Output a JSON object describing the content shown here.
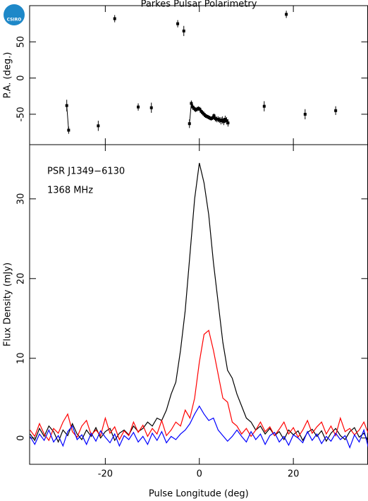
{
  "logo": "CSIRO",
  "chart_data": [
    {
      "type": "scatter",
      "title": "Parkes Pulsar Polarimetry",
      "ylabel": "P.A. (deg.)",
      "xlim": [
        -36.1,
        35.8
      ],
      "xticks": [
        -20,
        0,
        20
      ],
      "ylim": [
        -92,
        100
      ],
      "yticks": [
        -50,
        0,
        50
      ],
      "color": "#000000",
      "x": [
        -28.2,
        -27.8,
        -21.5,
        -18,
        -13,
        -10.2,
        -4.6,
        -3.3,
        -2.1,
        -1.7,
        -1.4,
        -1.1,
        -0.8,
        -0.5,
        -0.2,
        0.1,
        0.4,
        0.7,
        1.0,
        1.3,
        1.6,
        1.9,
        2.2,
        2.5,
        2.8,
        3.1,
        3.4,
        3.7,
        4.0,
        4.3,
        4.6,
        4.9,
        5.2,
        5.5,
        5.8,
        6.1,
        13.8,
        18.5,
        22.5,
        29
      ],
      "values": [
        -38,
        -72,
        -66,
        82,
        -40,
        -41,
        75,
        65,
        -63,
        -35,
        -40,
        -42,
        -44,
        -43,
        -42,
        -43,
        -46,
        -48,
        -50,
        -52,
        -53,
        -54,
        -55,
        -56,
        -55,
        -52,
        -56,
        -57,
        -57,
        -58,
        -59,
        -58,
        -60,
        -57,
        -59,
        -62,
        -39,
        88,
        -50,
        -45
      ],
      "errors": [
        8,
        5,
        7,
        5,
        5,
        7,
        5,
        7,
        6,
        4,
        4,
        3,
        3,
        3,
        3,
        3,
        3,
        3,
        3,
        3,
        3,
        3,
        3,
        3,
        3,
        3,
        4,
        4,
        4,
        4,
        5,
        5,
        5,
        5,
        5,
        5,
        7,
        5,
        7,
        6
      ]
    },
    {
      "type": "line",
      "xlabel": "Pulse Longitude (deg)",
      "ylabel": "Flux Density (mJy)",
      "annotations": [
        "PSR J1349−6130",
        "1368 MHz"
      ],
      "xlim": [
        -36.1,
        35.8
      ],
      "xticks": [
        -20,
        0,
        20
      ],
      "ylim": [
        -3.3,
        36.8
      ],
      "yticks": [
        0,
        10,
        20,
        30
      ],
      "x": [
        -36,
        -35,
        -34,
        -33,
        -32,
        -31,
        -30,
        -29,
        -28,
        -27,
        -26,
        -25,
        -24,
        -23,
        -22,
        -21,
        -20,
        -19,
        -18,
        -17,
        -16,
        -15,
        -14,
        -13,
        -12,
        -11,
        -10,
        -9,
        -8,
        -7,
        -6,
        -5,
        -4,
        -3,
        -2,
        -1,
        0,
        1,
        2,
        3,
        4,
        5,
        6,
        7,
        8,
        9,
        10,
        11,
        12,
        13,
        14,
        15,
        16,
        17,
        18,
        19,
        20,
        21,
        22,
        23,
        24,
        25,
        26,
        27,
        28,
        29,
        30,
        31,
        32,
        33,
        34,
        35,
        36
      ],
      "series": [
        {
          "color": "#000000",
          "values": [
            0.5,
            -0.3,
            1.2,
            0.2,
            1.5,
            0.8,
            -0.5,
            1.0,
            0.3,
            1.8,
            0.5,
            -0.2,
            1.0,
            0.2,
            1.3,
            0.0,
            0.8,
            1.2,
            -0.3,
            0.6,
            1.0,
            0.4,
            1.5,
            0.8,
            1.2,
            2.0,
            1.5,
            2.5,
            2.2,
            3.5,
            5.5,
            7.0,
            11,
            16,
            23,
            30,
            34.5,
            32,
            28,
            22,
            17,
            12,
            8.5,
            7.5,
            5.5,
            4,
            2.5,
            2,
            1,
            1.5,
            0.5,
            1.2,
            0.3,
            0.8,
            -0.2,
            1.0,
            0.4,
            0.9,
            -0.3,
            0.7,
            1.1,
            0.2,
            0.9,
            -0.4,
            0.6,
            1.2,
            0.3,
            -0.2,
            0.8,
            1.3,
            0.1,
            0.6,
            -0.5
          ]
        },
        {
          "color": "#ff0000",
          "values": [
            1.0,
            0.2,
            1.8,
            0.5,
            -0.3,
            1.2,
            0.6,
            2.0,
            3.0,
            0.8,
            0.1,
            1.5,
            2.2,
            0.4,
            1.0,
            0.3,
            2.5,
            0.6,
            1.4,
            -0.2,
            0.9,
            0.3,
            2.0,
            0.7,
            1.6,
            0.2,
            1.2,
            0.5,
            2.2,
            0.3,
            1.0,
            2.0,
            1.5,
            3.5,
            2.5,
            5.0,
            9.5,
            13.0,
            13.5,
            11,
            8,
            5,
            4.5,
            2,
            1.5,
            0.5,
            1.2,
            0.2,
            1.0,
            2.0,
            0.8,
            1.4,
            0.3,
            1.1,
            2.0,
            0.5,
            1.3,
            0.1,
            1.0,
            2.2,
            0.6,
            1.4,
            2.0,
            0.5,
            1.5,
            0.3,
            2.5,
            0.8,
            1.2,
            0.4,
            1.0,
            2.0,
            0.5
          ]
        },
        {
          "color": "#0000ff",
          "values": [
            0.2,
            -0.8,
            0.5,
            -0.3,
            1.0,
            -0.5,
            0.3,
            -1.0,
            0.8,
            1.5,
            -0.2,
            0.4,
            -0.8,
            0.6,
            -0.4,
            0.9,
            0.1,
            -0.6,
            0.5,
            -1.0,
            0.3,
            -0.2,
            0.7,
            -0.5,
            0.2,
            -0.8,
            0.6,
            -0.3,
            0.8,
            -0.6,
            0.2,
            -0.2,
            0.5,
            1.0,
            1.8,
            3.0,
            4.0,
            3.0,
            2.2,
            2.5,
            1.0,
            0.3,
            -0.4,
            0.2,
            1.0,
            0.2,
            -0.5,
            0.8,
            -0.2,
            0.5,
            -0.8,
            0.3,
            0.7,
            -0.5,
            0.2,
            -0.9,
            0.4,
            0.0,
            -0.6,
            0.8,
            -0.3,
            0.5,
            -0.7,
            0.2,
            -0.4,
            0.6,
            -0.2,
            0.3,
            -1.2,
            0.4,
            -0.5,
            1.0,
            -1.3
          ]
        }
      ]
    }
  ]
}
